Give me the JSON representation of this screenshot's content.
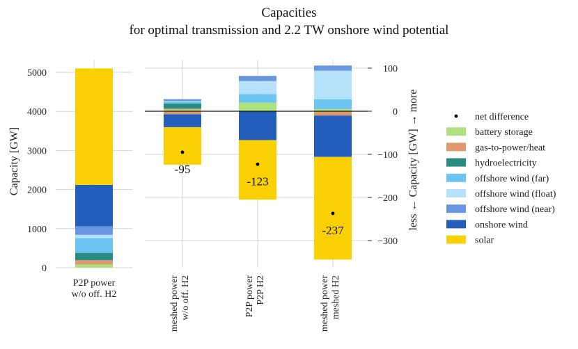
{
  "chart_data": {
    "type": "bar",
    "title": [
      "Capacities",
      "for optimal transmission and 2.2 TW onshore wind potential"
    ],
    "colors": {
      "battery storage": "#ade27e",
      "gas-to-power/heat": "#e0986c",
      "hydroelectricity": "#298c81",
      "offshore wind (far)": "#6cc4f0",
      "offshore wind (float)": "#b5e1fa",
      "offshore wind (near)": "#6896e0",
      "onshore wind": "#235ebc",
      "solar": "#f9d002",
      "net difference": "#000000"
    },
    "legend": [
      "net difference",
      "battery storage",
      "gas-to-power/heat",
      "hydroelectricity",
      "offshore wind (far)",
      "offshore wind (float)",
      "offshore wind (near)",
      "onshore wind",
      "solar"
    ],
    "left_panel": {
      "ylabel": "Capacity [GW]",
      "ylim": [
        0,
        5300
      ],
      "yticks": [
        "0",
        "1000",
        "2000",
        "3000",
        "4000",
        "5000"
      ],
      "category": [
        "P2P power",
        "w/o off. H2"
      ],
      "stack": [
        {
          "name": "battery storage",
          "value": 80
        },
        {
          "name": "gas-to-power/heat",
          "value": 110
        },
        {
          "name": "hydroelectricity",
          "value": 190
        },
        {
          "name": "offshore wind (far)",
          "value": 380
        },
        {
          "name": "offshore wind (float)",
          "value": 80
        },
        {
          "name": "offshore wind (near)",
          "value": 220
        },
        {
          "name": "onshore wind",
          "value": 1060
        },
        {
          "name": "solar",
          "value": 2980
        }
      ]
    },
    "right_panel": {
      "ylabel": "less ← Capacity [GW] → more",
      "ylim": [
        -340,
        110
      ],
      "yticks": [
        "100",
        "0",
        "−100",
        "−200",
        "−300"
      ],
      "categories": [
        {
          "label": [
            "meshed power",
            "w/o off. H2"
          ],
          "net_difference": -95,
          "net_label": "-95",
          "positive": [
            {
              "name": "battery storage",
              "value": 4
            },
            {
              "name": "gas-to-power/heat",
              "value": 2
            },
            {
              "name": "hydroelectricity",
              "value": 12
            },
            {
              "name": "offshore wind (far)",
              "value": 5
            },
            {
              "name": "offshore wind (float)",
              "value": 1
            },
            {
              "name": "offshore wind (near)",
              "value": 4
            }
          ],
          "negative": [
            {
              "name": "gas-to-power/heat",
              "value": -7
            },
            {
              "name": "onshore wind",
              "value": -30
            },
            {
              "name": "solar",
              "value": -87
            }
          ]
        },
        {
          "label": [
            "P2P power",
            "P2P H2"
          ],
          "net_difference": -123,
          "net_label": "-123",
          "positive": [
            {
              "name": "battery storage",
              "value": 20
            },
            {
              "name": "offshore wind (far)",
              "value": 20
            },
            {
              "name": "offshore wind (float)",
              "value": 30
            },
            {
              "name": "offshore wind (near)",
              "value": 12
            }
          ],
          "negative": [
            {
              "name": "onshore wind",
              "value": -67
            },
            {
              "name": "solar",
              "value": -138
            }
          ]
        },
        {
          "label": [
            "meshed power",
            "meshed H2"
          ],
          "net_difference": -237,
          "net_label": "-237",
          "positive": [
            {
              "name": "battery storage",
              "value": 5
            },
            {
              "name": "offshore wind (far)",
              "value": 23
            },
            {
              "name": "offshore wind (float)",
              "value": 66
            },
            {
              "name": "offshore wind (near)",
              "value": 12
            }
          ],
          "negative": [
            {
              "name": "gas-to-power/heat",
              "value": -10
            },
            {
              "name": "onshore wind",
              "value": -96
            },
            {
              "name": "solar",
              "value": -238
            }
          ]
        }
      ]
    }
  }
}
